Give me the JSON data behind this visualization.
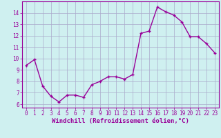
{
  "x": [
    0,
    1,
    2,
    3,
    4,
    5,
    6,
    7,
    8,
    9,
    10,
    11,
    12,
    13,
    14,
    15,
    16,
    17,
    18,
    19,
    20,
    21,
    22,
    23
  ],
  "y": [
    9.4,
    9.9,
    7.6,
    6.7,
    6.2,
    6.8,
    6.8,
    6.6,
    7.7,
    8.0,
    8.4,
    8.4,
    8.2,
    8.6,
    12.2,
    12.4,
    14.5,
    14.1,
    13.8,
    13.2,
    11.9,
    11.9,
    11.3,
    10.5
  ],
  "line_color": "#990099",
  "marker": "+",
  "marker_size": 3,
  "marker_lw": 1.0,
  "bg_color": "#cff0f0",
  "grid_color": "#aaaacc",
  "xlabel": "Windchill (Refroidissement éolien,°C)",
  "xlim": [
    -0.5,
    23.5
  ],
  "ylim": [
    5.7,
    15.0
  ],
  "yticks": [
    6,
    7,
    8,
    9,
    10,
    11,
    12,
    13,
    14
  ],
  "xticks": [
    0,
    1,
    2,
    3,
    4,
    5,
    6,
    7,
    8,
    9,
    10,
    11,
    12,
    13,
    14,
    15,
    16,
    17,
    18,
    19,
    20,
    21,
    22,
    23
  ],
  "tick_fontsize": 5.5,
  "label_fontsize": 6.5,
  "linewidth": 1.0
}
